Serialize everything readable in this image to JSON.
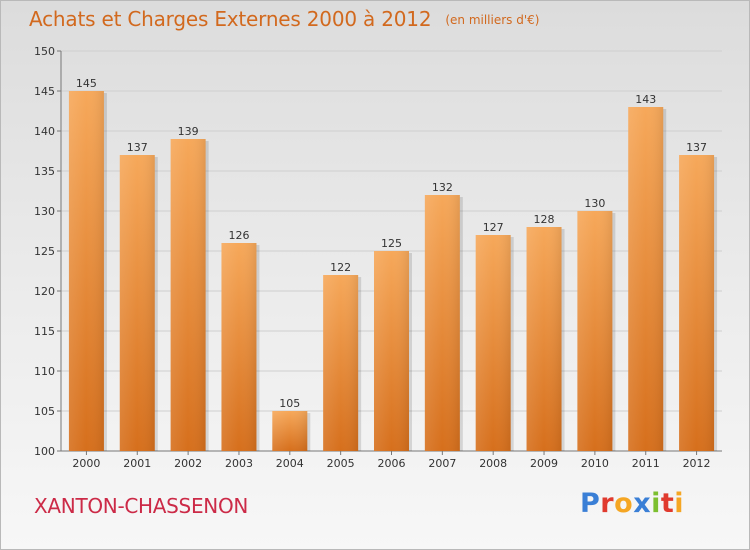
{
  "header": {
    "title": "Achats et Charges Externes 2000 à 2012",
    "unit": "(en milliers d'€)"
  },
  "footer": {
    "commune": "XANTON-CHASSENON",
    "logo_text": "Proxiti",
    "logo_colors": [
      "#3a7fd6",
      "#e03a2e",
      "#f5a623",
      "#3a7fd6",
      "#7cbf2f",
      "#e03a2e",
      "#f5a623"
    ]
  },
  "colors": {
    "title": "#d2691e",
    "commune": "#cc2a47",
    "bar_top": "#f6a85a",
    "bar_bottom": "#d66f1c",
    "grid": "#cfcfcf"
  },
  "chart_data": {
    "type": "bar",
    "title": "Achats et Charges Externes 2000 à 2012",
    "categories": [
      "2000",
      "2001",
      "2002",
      "2003",
      "2004",
      "2005",
      "2006",
      "2007",
      "2008",
      "2009",
      "2010",
      "2011",
      "2012"
    ],
    "values": [
      145,
      137,
      139,
      126,
      105,
      122,
      125,
      132,
      127,
      128,
      130,
      143,
      137
    ],
    "ylim": [
      100,
      150
    ],
    "yticks": [
      100,
      105,
      110,
      115,
      120,
      125,
      130,
      135,
      140,
      145,
      150
    ],
    "grid": true,
    "xlabel": "",
    "ylabel": ""
  }
}
